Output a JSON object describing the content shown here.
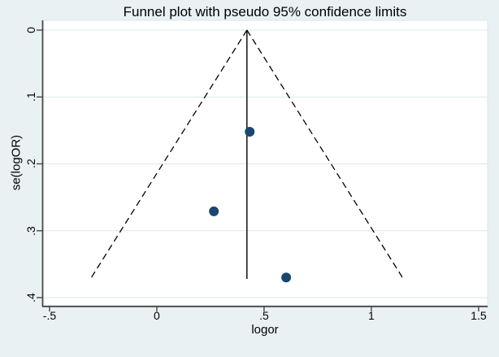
{
  "figure": {
    "background_color": "#e9f1f3",
    "plot_background_color": "#ffffff",
    "grid_color": "#dbe7ec",
    "axis_color": "#474747",
    "marker_color": "#1a476f",
    "marker_edge_color": "#123ould-replace",
    "line_color": "#000000"
  },
  "chart_data": {
    "type": "scatter",
    "subtype": "funnel-plot",
    "title": "Funnel plot with pseudo 95% confidence limits",
    "xlabel": "logor",
    "ylabel": "se(logOR)",
    "xlim": [
      -0.534,
      1.542
    ],
    "ylim": [
      -0.0146,
      0.4122
    ],
    "y_axis_inverted": true,
    "grid": "horizontal",
    "legend": "none",
    "x_ticks": {
      "values": [
        -0.5,
        0,
        0.5,
        1,
        1.5
      ],
      "labels": [
        "-.5",
        "0",
        ".5",
        "1",
        "1.5"
      ]
    },
    "y_ticks": {
      "values": [
        0,
        0.1,
        0.2,
        0.3,
        0.4
      ],
      "labels": [
        "0",
        ".1",
        ".2",
        ".3",
        ".4"
      ]
    },
    "points": [
      {
        "logor": 0.433,
        "se": 0.152
      },
      {
        "logor": 0.266,
        "se": 0.271
      },
      {
        "logor": 0.603,
        "se": 0.37
      }
    ],
    "center_line": {
      "x": 0.42,
      "se_from": 0,
      "se_to": 0.372,
      "style": "solid"
    },
    "pseudo_ci_limits": {
      "apex_x": 0.42,
      "multiplier": 1.96,
      "se_max": 0.372,
      "style": "dashed"
    }
  }
}
